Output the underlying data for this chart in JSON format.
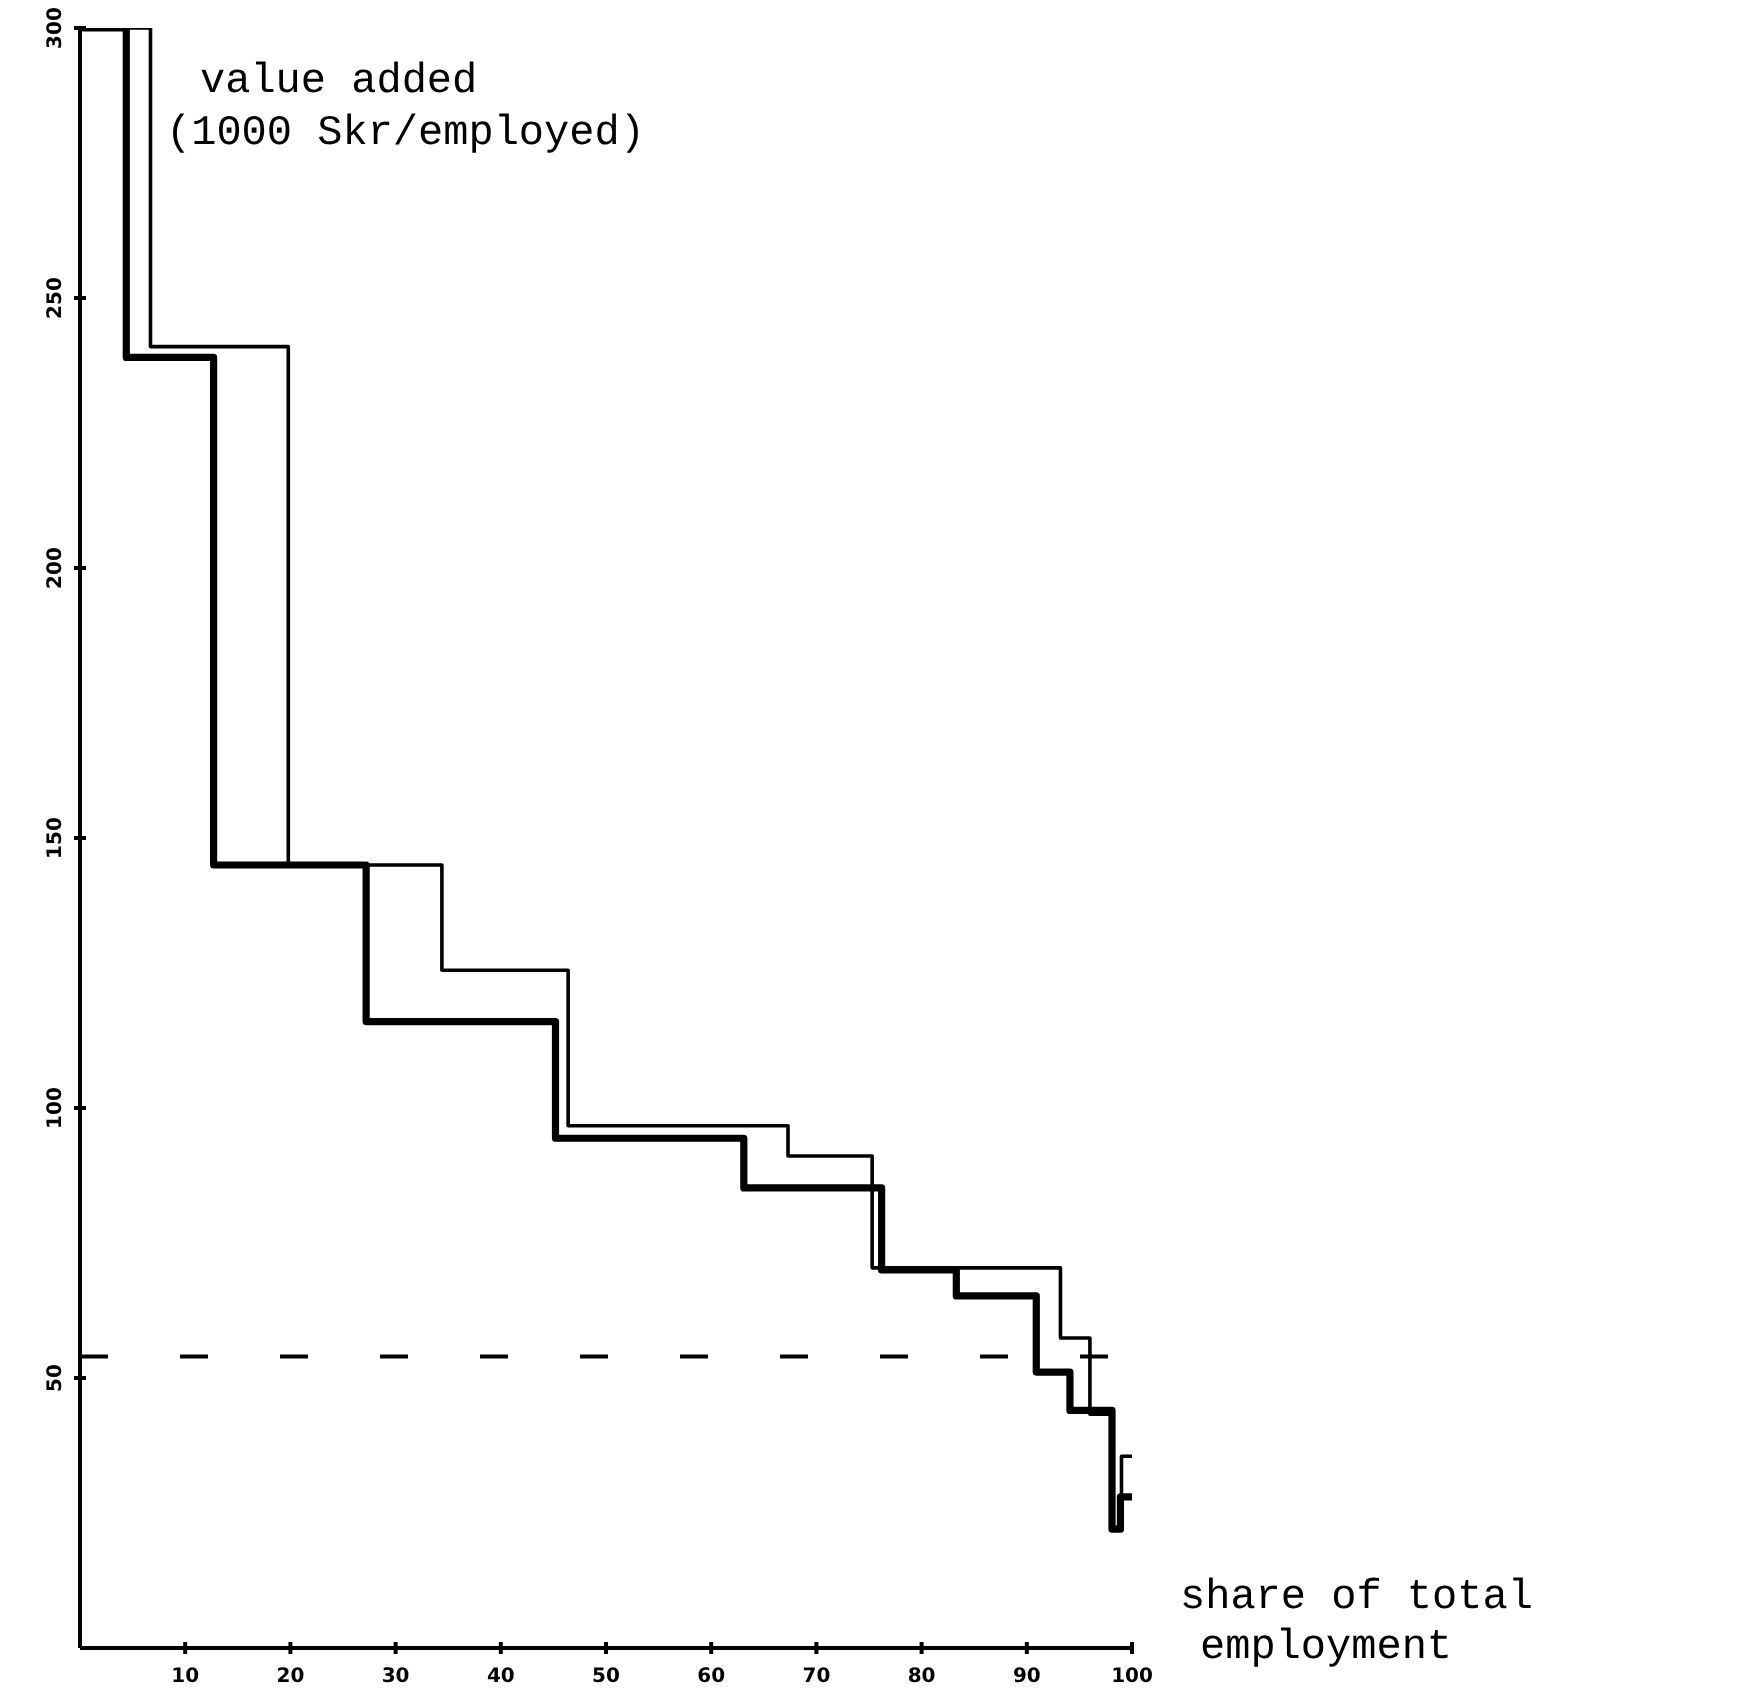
{
  "chart_data": {
    "type": "step",
    "xlabel": "share of total\nemployment",
    "ylabel": "value added\n(1000 Skr/employed)",
    "xlim": [
      0,
      100
    ],
    "ylim": [
      0,
      300
    ],
    "xticks": [
      10,
      20,
      30,
      40,
      50,
      60,
      70,
      80,
      90,
      100
    ],
    "yticks": [
      50,
      100,
      150,
      200,
      250,
      300
    ],
    "grid": false,
    "marker": "none",
    "series": [
      {
        "color": "#000000",
        "x": [
          0,
          6.7,
          19.8,
          34.4,
          46.4,
          67.3,
          75.3,
          93.2,
          96.0,
          98.1,
          99.0,
          100
        ],
        "values": [
          300,
          241,
          145,
          125.5,
          96.7,
          91.1,
          70.4,
          57.4,
          43.3,
          22,
          35.5,
          35.5
        ]
      },
      {
        "color": "#000000",
        "x": [
          0,
          4.4,
          12.7,
          27.2,
          45.2,
          63.1,
          76.2,
          83.3,
          90.9,
          94.1,
          98.1,
          98.9,
          100
        ],
        "values": [
          300,
          239,
          145,
          116,
          94.4,
          85.2,
          70,
          65.2,
          51.1,
          44,
          22,
          28,
          28
        ]
      }
    ],
    "ref_lines": [
      {
        "axis": "y",
        "value": 54,
        "line_style": "dashed",
        "color": "#000000"
      }
    ]
  }
}
